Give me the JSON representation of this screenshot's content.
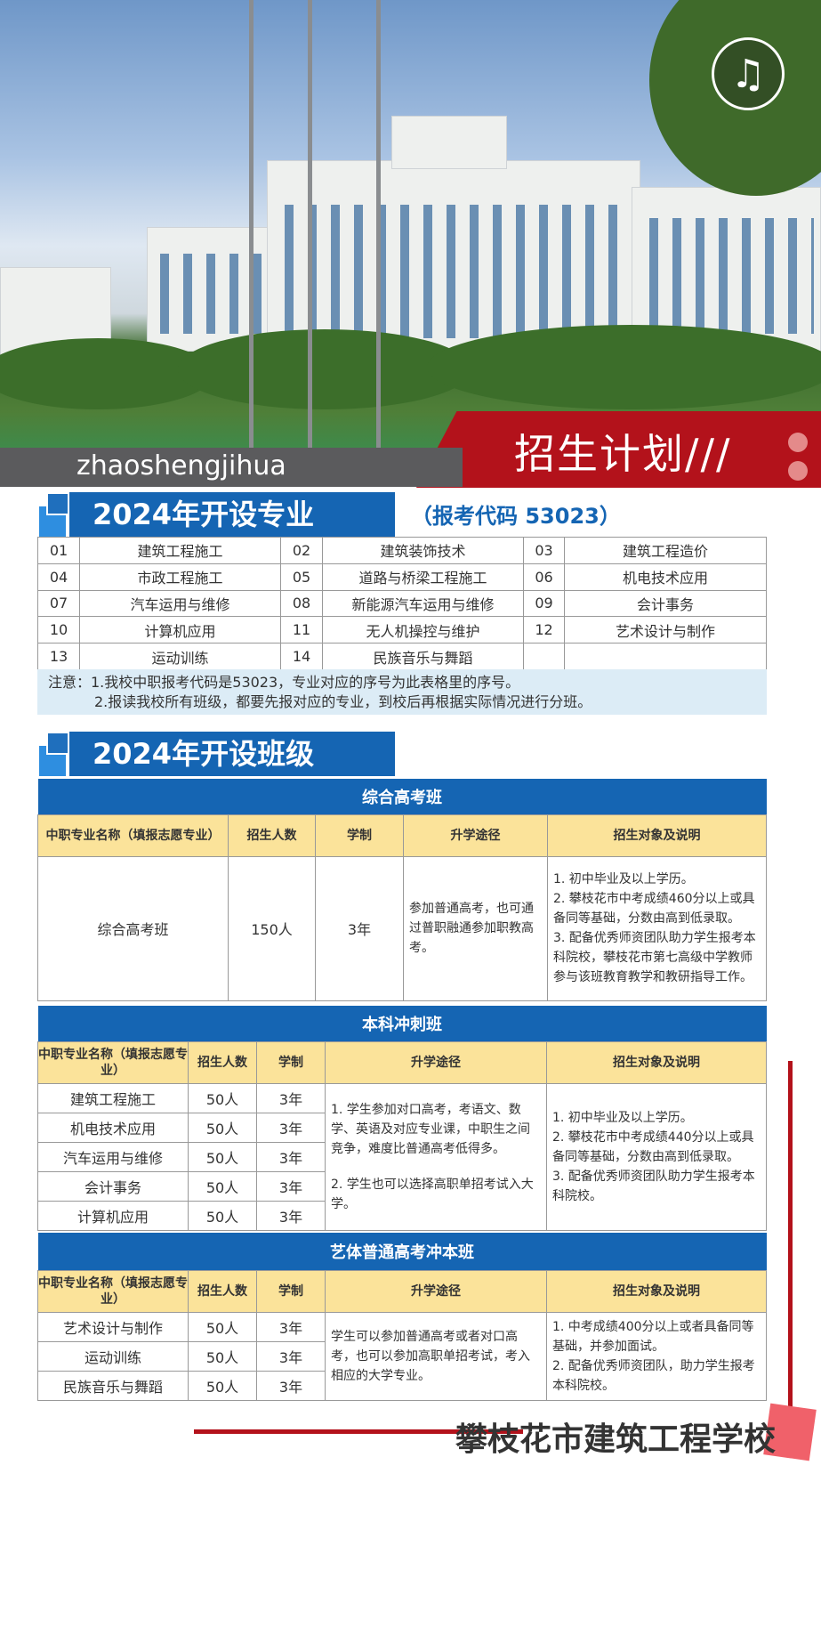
{
  "header": {
    "pinyin": "zhaoshengjihua",
    "title": "招生计划///",
    "icon": "music-note-icon"
  },
  "majors": {
    "title": "2024年开设专业",
    "code": "（报考代码 53023）",
    "rows": [
      [
        [
          "01",
          "建筑工程施工"
        ],
        [
          "02",
          "建筑装饰技术"
        ],
        [
          "03",
          "建筑工程造价"
        ]
      ],
      [
        [
          "04",
          "市政工程施工"
        ],
        [
          "05",
          "道路与桥梁工程施工"
        ],
        [
          "06",
          "机电技术应用"
        ]
      ],
      [
        [
          "07",
          "汽车运用与维修"
        ],
        [
          "08",
          "新能源汽车运用与维修"
        ],
        [
          "09",
          "会计事务"
        ]
      ],
      [
        [
          "10",
          "计算机应用"
        ],
        [
          "11",
          "无人机操控与维护"
        ],
        [
          "12",
          "艺术设计与制作"
        ]
      ],
      [
        [
          "13",
          "运动训练"
        ],
        [
          "14",
          "民族音乐与舞蹈"
        ],
        [
          "",
          ""
        ]
      ]
    ],
    "note1": "注意：1.我校中职报考代码是53023，专业对应的序号为此表格里的序号。",
    "note2": "2.报读我校所有班级，都要先报对应的专业，到校后再根据实际情况进行分班。"
  },
  "classes": {
    "title": "2024年开设班级",
    "headers": {
      "name": "中职专业名称（填报志愿专业）",
      "count": "招生人数",
      "years": "学制",
      "path": "升学途径",
      "desc": "招生对象及说明"
    },
    "comprehensive": {
      "title": "综合高考班",
      "name": "综合高考班",
      "count": "150人",
      "years": "3年",
      "path": "参加普通高考，也可通过普职融通参加职教高考。",
      "desc": [
        "1. 初中毕业及以上学历。",
        "2. 攀枝花市中考成绩460分以上或具备同等基础，分数由高到低录取。",
        "3. 配备优秀师资团队助力学生报考本科院校，攀枝花市第七高级中学教师参与该班教育教学和教研指导工作。"
      ]
    },
    "undergrad": {
      "title": "本科冲刺班",
      "rows": [
        [
          "建筑工程施工",
          "50人",
          "3年"
        ],
        [
          "机电技术应用",
          "50人",
          "3年"
        ],
        [
          "汽车运用与维修",
          "50人",
          "3年"
        ],
        [
          "会计事务",
          "50人",
          "3年"
        ],
        [
          "计算机应用",
          "50人",
          "3年"
        ]
      ],
      "path": [
        "1. 学生参加对口高考，考语文、数学、英语及对应专业课，中职生之间竞争，难度比普通高考低得多。",
        "2. 学生也可以选择高职单招考试入大学。"
      ],
      "desc": [
        "1. 初中毕业及以上学历。",
        "2. 攀枝花市中考成绩440分以上或具备同等基础，分数由高到低录取。",
        "3. 配备优秀师资团队助力学生报考本科院校。"
      ]
    },
    "arts": {
      "title": "艺体普通高考冲本班",
      "rows": [
        [
          "艺术设计与制作",
          "50人",
          "3年"
        ],
        [
          "运动训练",
          "50人",
          "3年"
        ],
        [
          "民族音乐与舞蹈",
          "50人",
          "3年"
        ]
      ],
      "path": "学生可以参加普通高考或者对口高考，也可以参加高职单招考试，考入相应的大学专业。",
      "desc": [
        "1. 中考成绩400分以上或者具备同等基础，并参加面试。",
        "2. 配备优秀师资团队，助力学生报考本科院校。"
      ]
    }
  },
  "footer": {
    "school": "攀枝花市建筑工程学校"
  },
  "colors": {
    "blue": "#1565b3",
    "red": "#b3121b",
    "yellow": "#fbe39a"
  }
}
